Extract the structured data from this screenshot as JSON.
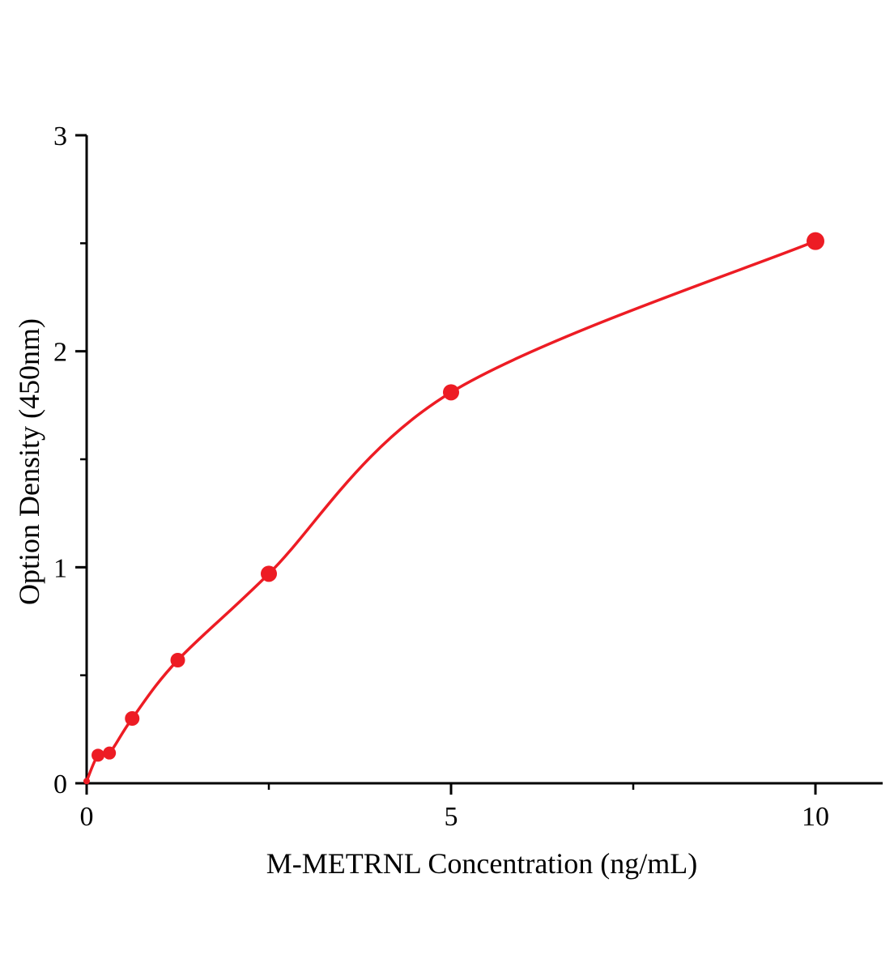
{
  "chart_data": {
    "type": "scatter",
    "title": "",
    "xlabel": "M-METRNL Concentration (ng/mL)",
    "ylabel": "Option Density (450nm)",
    "x": [
      0,
      0.156,
      0.313,
      0.625,
      1.25,
      2.5,
      5,
      10
    ],
    "y": [
      0.01,
      0.13,
      0.14,
      0.3,
      0.57,
      0.97,
      1.81,
      2.51
    ],
    "marker_radii": [
      4,
      8,
      8,
      9,
      9,
      10,
      10,
      11
    ],
    "xlim": [
      0,
      10.9
    ],
    "ylim": [
      0,
      3
    ],
    "x_ticks_major": [
      0,
      5,
      10
    ],
    "x_ticks_minor": [
      2.5,
      7.5
    ],
    "y_ticks_major": [
      0,
      1,
      2,
      3
    ],
    "y_ticks_minor": [
      0.5,
      1.5,
      2.5
    ],
    "x_tick_labels": [
      "0",
      "5",
      "10"
    ],
    "y_tick_labels": [
      "0",
      "1",
      "2",
      "3"
    ],
    "grid": false,
    "legend": null,
    "line_color": "#ed1c24",
    "marker_color": "#ed1c24",
    "axis_color": "#000000",
    "fit": "smooth curve through standard points"
  }
}
